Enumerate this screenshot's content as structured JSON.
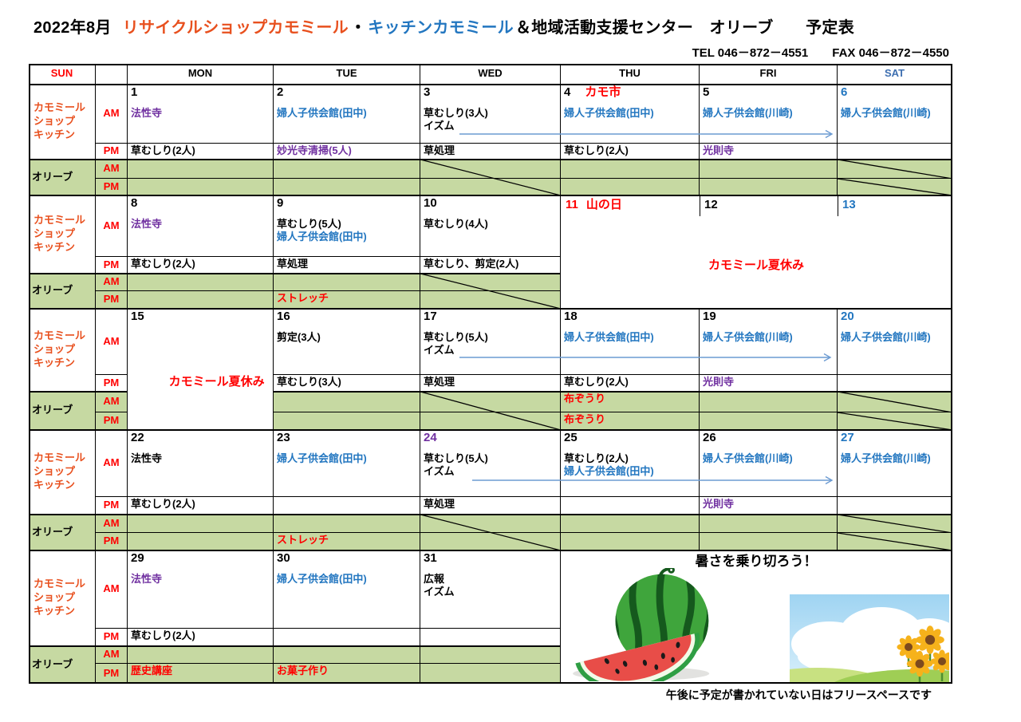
{
  "title": {
    "year_month": "2022年8月",
    "shop": "リサイクルショップカモミール",
    "dot": "・",
    "kitchen": "キッチンカモミール",
    "rest": "＆地域活動支援センター　オリーブ　　予定表"
  },
  "contact": "TEL 046－872－4551　　FAX 046－872－4550",
  "footer": "午後に予定が書かれていない日はフリースペースです",
  "colors": {
    "k": "#000000",
    "r": "#FF0000",
    "b": "#2276C0",
    "p": "#7030A0",
    "title_red": "#E8501E",
    "label_red": "#E8501E",
    "green_bg": "#C6D9A2",
    "arrow": "#6C9BD2",
    "sat_header": "#3E6FB0",
    "border": "#000000"
  },
  "header_days": [
    {
      "label": "SUN",
      "c": "r"
    },
    {
      "label": "MON",
      "c": "k"
    },
    {
      "label": "TUE",
      "c": "k"
    },
    {
      "label": "WED",
      "c": "k"
    },
    {
      "label": "THU",
      "c": "k"
    },
    {
      "label": "FRI",
      "c": "k"
    },
    {
      "label": "SAT",
      "c": "sat_header"
    }
  ],
  "row_labels": {
    "kamomiru_lines": [
      "カモミール",
      "ショップ",
      "キッチン"
    ],
    "olive": "オリーブ",
    "am": "AM",
    "pm": "PM"
  },
  "weeks": [
    {
      "days": [
        {
          "col": 0,
          "num": "1",
          "nc": "k",
          "am": [
            {
              "t": "法性寺",
              "c": "p"
            }
          ],
          "pm": [
            {
              "t": "草むしり(2人)",
              "c": "k"
            }
          ],
          "oam": [],
          "opm": []
        },
        {
          "col": 1,
          "num": "2",
          "nc": "k",
          "am": [
            {
              "t": "婦人子供会館(田中)",
              "c": "b"
            }
          ],
          "pm": [
            {
              "t": "妙光寺清掃(5人)",
              "c": "p"
            }
          ],
          "oam": [],
          "opm": []
        },
        {
          "col": 2,
          "num": "3",
          "nc": "k",
          "am": [
            {
              "t": "草むしり(3人)",
              "c": "k"
            },
            {
              "t": "イズム",
              "c": "k"
            }
          ],
          "pm": [
            {
              "t": "草処理",
              "c": "k"
            }
          ],
          "oam": [],
          "opm": [],
          "diag": "span"
        },
        {
          "col": 3,
          "num": "4",
          "nc": "k",
          "suffix": {
            "t": "カモ市",
            "c": "r"
          },
          "am": [
            {
              "t": "婦人子供会館(田中)",
              "c": "b"
            }
          ],
          "pm": [
            {
              "t": "草むしり(2人)",
              "c": "k"
            }
          ],
          "oam": [],
          "opm": []
        },
        {
          "col": 4,
          "num": "5",
          "nc": "k",
          "am": [
            {
              "t": "婦人子供会館(川崎)",
              "c": "b"
            }
          ],
          "pm": [
            {
              "t": "光則寺",
              "c": "p"
            }
          ],
          "oam": [],
          "opm": []
        },
        {
          "col": 5,
          "num": "6",
          "nc": "b",
          "am": [
            {
              "t": "婦人子供会館(川崎)",
              "c": "b"
            }
          ],
          "pm": [],
          "oam": [],
          "opm": [],
          "diag": "both"
        }
      ],
      "arrow": true
    },
    {
      "days": [
        {
          "col": 0,
          "num": "8",
          "nc": "k",
          "am": [
            {
              "t": "法性寺",
              "c": "p"
            }
          ],
          "pm": [
            {
              "t": "草むしり(2人)",
              "c": "k"
            }
          ],
          "oam": [],
          "opm": []
        },
        {
          "col": 1,
          "num": "9",
          "nc": "k",
          "am": [
            {
              "t": "草むしり(5人)",
              "c": "k"
            },
            {
              "t": "婦人子供会館(田中)",
              "c": "b"
            }
          ],
          "pm": [
            {
              "t": "草処理",
              "c": "k"
            }
          ],
          "oam": [],
          "opm": [
            {
              "t": "ストレッチ",
              "c": "r"
            }
          ]
        },
        {
          "col": 2,
          "num": "10",
          "nc": "k",
          "am": [
            {
              "t": "草むしり(4人)",
              "c": "k"
            }
          ],
          "pm": [
            {
              "t": "草むしり、剪定(2人)",
              "c": "k"
            }
          ],
          "oam": [],
          "opm": [],
          "diag": "span"
        }
      ],
      "merge": {
        "type": "vacation",
        "nums": [
          {
            "t": "11",
            "c": "r",
            "suffix": {
              "t": "山の日",
              "c": "r"
            }
          },
          {
            "t": "12",
            "c": "k"
          },
          {
            "t": "13",
            "c": "b"
          }
        ],
        "text": "カモミール夏休み",
        "tc": "r"
      }
    },
    {
      "days": [
        {
          "col": 0,
          "num": "15",
          "nc": "k",
          "merge_col": true,
          "text": "カモミール夏休み",
          "tc": "r",
          "am": [],
          "pm": [],
          "oam": [],
          "opm": []
        },
        {
          "col": 1,
          "num": "16",
          "nc": "k",
          "am": [
            {
              "t": "剪定(3人)",
              "c": "k"
            }
          ],
          "pm": [
            {
              "t": "草むしり(3人)",
              "c": "k"
            }
          ],
          "oam": [],
          "opm": []
        },
        {
          "col": 2,
          "num": "17",
          "nc": "k",
          "am": [
            {
              "t": "草むしり(5人)",
              "c": "k"
            },
            {
              "t": "イズム",
              "c": "k"
            }
          ],
          "pm": [
            {
              "t": "草処理",
              "c": "k"
            }
          ],
          "oam": [],
          "opm": [],
          "diag": "span"
        },
        {
          "col": 3,
          "num": "18",
          "nc": "k",
          "am": [
            {
              "t": "婦人子供会館(田中)",
              "c": "b"
            }
          ],
          "pm": [
            {
              "t": "草むしり(2人)",
              "c": "k"
            }
          ],
          "oam": [
            {
              "t": "布ぞうり",
              "c": "r"
            }
          ],
          "opm": [
            {
              "t": "布ぞうり",
              "c": "r"
            }
          ]
        },
        {
          "col": 4,
          "num": "19",
          "nc": "k",
          "am": [
            {
              "t": "婦人子供会館(川崎)",
              "c": "b"
            }
          ],
          "pm": [
            {
              "t": "光則寺",
              "c": "p"
            }
          ],
          "oam": [],
          "opm": []
        },
        {
          "col": 5,
          "num": "20",
          "nc": "b",
          "am": [
            {
              "t": "婦人子供会館(川崎)",
              "c": "b"
            }
          ],
          "pm": [],
          "oam": [],
          "opm": [],
          "diag": "both"
        }
      ],
      "arrow": true
    },
    {
      "days": [
        {
          "col": 0,
          "num": "22",
          "nc": "k",
          "am": [
            {
              "t": "法性寺",
              "c": "k"
            }
          ],
          "pm": [
            {
              "t": "草むしり(2人)",
              "c": "k"
            }
          ],
          "oam": [],
          "opm": []
        },
        {
          "col": 1,
          "num": "23",
          "nc": "k",
          "am": [
            {
              "t": "婦人子供会館(田中)",
              "c": "b"
            }
          ],
          "pm": [],
          "oam": [],
          "opm": [
            {
              "t": "ストレッチ",
              "c": "r"
            }
          ]
        },
        {
          "col": 2,
          "num": "24",
          "nc": "p",
          "am": [
            {
              "t": "草むしり(5人)",
              "c": "k"
            },
            {
              "t": "イズム",
              "c": "k"
            }
          ],
          "pm": [
            {
              "t": "草処理",
              "c": "k"
            }
          ],
          "oam": [],
          "opm": [],
          "diag": "span"
        },
        {
          "col": 3,
          "num": "25",
          "nc": "k",
          "am": [
            {
              "t": "草むしり(2人)",
              "c": "k"
            },
            {
              "t": "婦人子供会館(田中)",
              "c": "b"
            }
          ],
          "pm": [],
          "oam": [],
          "opm": []
        },
        {
          "col": 4,
          "num": "26",
          "nc": "k",
          "am": [
            {
              "t": "婦人子供会館(川崎)",
              "c": "b"
            }
          ],
          "pm": [
            {
              "t": "光則寺",
              "c": "p"
            }
          ],
          "oam": [],
          "opm": []
        },
        {
          "col": 5,
          "num": "27",
          "nc": "b",
          "am": [
            {
              "t": "婦人子供会館(川崎)",
              "c": "b"
            }
          ],
          "pm": [],
          "oam": [],
          "opm": [],
          "diag": "both"
        }
      ],
      "arrow": true
    },
    {
      "days": [
        {
          "col": 0,
          "num": "29",
          "nc": "k",
          "am": [
            {
              "t": "法性寺",
              "c": "p"
            }
          ],
          "pm": [
            {
              "t": "草むしり(2人)",
              "c": "k"
            }
          ],
          "oam": [],
          "opm": [
            {
              "t": "歴史講座",
              "c": "r"
            }
          ]
        },
        {
          "col": 1,
          "num": "30",
          "nc": "k",
          "am": [
            {
              "t": "婦人子供会館(田中)",
              "c": "b"
            }
          ],
          "pm": [],
          "oam": [],
          "opm": [
            {
              "t": "お菓子作り",
              "c": "r"
            }
          ]
        },
        {
          "col": 2,
          "num": "31",
          "nc": "k",
          "am": [
            {
              "t": "広報",
              "c": "k"
            },
            {
              "t": "イズム",
              "c": "k"
            }
          ],
          "pm": [],
          "oam": [],
          "opm": []
        }
      ],
      "merge": {
        "type": "banner",
        "banner": "暑さを乗り切ろう！",
        "illustrations": [
          "watermelon-illustration",
          "sunflower-field-illustration"
        ]
      }
    }
  ]
}
